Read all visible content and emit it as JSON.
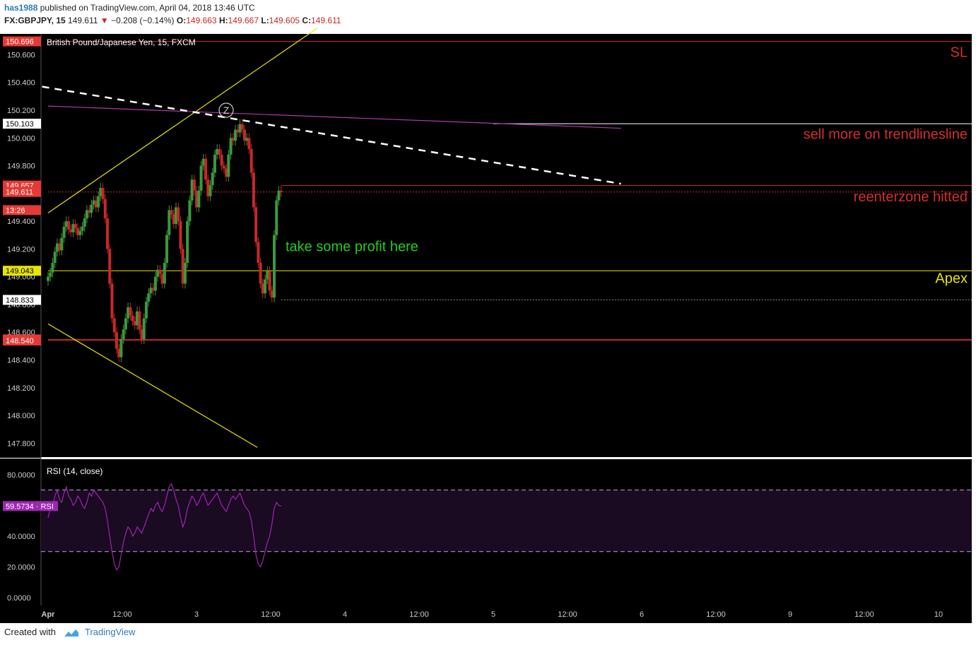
{
  "header": {
    "user": "has1988",
    "published": "published on TradingView.com, April 04, 2018 13:46 UTC",
    "symbol": "FX:GBPJPY, 15",
    "last": "149.611",
    "change_arrow": "▼",
    "change": "−0.208 (−0.14%)",
    "o_label": "O:",
    "o": "149.663",
    "h_label": "H:",
    "h": "149.667",
    "l_label": "L:",
    "l": "149.605",
    "c_label": "C:",
    "c": "149.611"
  },
  "footer": {
    "created_with": "Created with",
    "brand": "TradingView"
  },
  "colors": {
    "background": "#000000",
    "up_candle": "#3a9a3a",
    "down_candle": "#c62828",
    "red_line": "#d32f2f",
    "yellow_line": "#e6e600",
    "magenta_line": "#b03aa8",
    "rsi_line": "#9c27b0",
    "rsi_band": "#1a0a22",
    "green_text": "#22cc22"
  },
  "chart_data": [
    {
      "type": "candlestick",
      "title": "British Pound/Japanese Yen, 15, FXCM",
      "y_ticks": [
        "150.600",
        "150.400",
        "150.200",
        "150.000",
        "149.800",
        "149.400",
        "149.200",
        "149.000",
        "148.800",
        "148.600",
        "148.400",
        "148.200",
        "148.000",
        "147.800"
      ],
      "ylim": [
        147.7,
        150.75
      ],
      "x_ticks": [
        "Apr",
        "12:00",
        "3",
        "12:00",
        "4",
        "12:00",
        "5",
        "12:00",
        "6",
        "12:00",
        "9",
        "12:00",
        "10"
      ],
      "price_labels": [
        {
          "text": "150.696",
          "value": 150.696,
          "color": "#e53935",
          "text_color": "#ffffff"
        },
        {
          "text": "150.103",
          "value": 150.103,
          "color": "#ffffff",
          "text_color": "#000000"
        },
        {
          "text": "149.657",
          "value": 149.657,
          "color": "#e53935",
          "text_color": "#ffffff"
        },
        {
          "text": "149.611",
          "value": 149.611,
          "color": "#e53935",
          "text_color": "#ffffff"
        },
        {
          "text": "13:26",
          "value": 149.48,
          "color": "#e53935",
          "text_color": "#ffffff"
        },
        {
          "text": "149.043",
          "value": 149.043,
          "color": "#e6e600",
          "text_color": "#000000"
        },
        {
          "text": "148.833",
          "value": 148.833,
          "color": "#ffffff",
          "text_color": "#000000"
        },
        {
          "text": "148.548",
          "value": 148.548,
          "color": "#e53935",
          "text_color": "#ffffff"
        },
        {
          "text": "148.540",
          "value": 148.54,
          "color": "#e53935",
          "text_color": "#ffffff"
        }
      ],
      "horizontal_lines": [
        {
          "value": 150.696,
          "color": "#d32f2f",
          "from_x": 0.0
        },
        {
          "value": 150.103,
          "color": "#ffffff",
          "from_x": 3.0
        },
        {
          "value": 149.657,
          "color": "#d32f2f",
          "from_x": 1.57
        },
        {
          "value": 149.611,
          "color": "#d32f2f",
          "dotted": true,
          "from_x": 0.0
        },
        {
          "value": 149.043,
          "color": "#e6e600",
          "from_x": 0.0
        },
        {
          "value": 148.833,
          "color": "#888888",
          "dotted": true,
          "from_x": 1.57
        },
        {
          "value": 148.548,
          "color": "#d32f2f",
          "from_x": 0.0
        },
        {
          "value": 148.54,
          "color": "#d32f2f",
          "from_x": 0.0
        }
      ],
      "trend_lines": [
        {
          "points": [
            [
              0.0,
              149.46
            ],
            [
              2.18,
              151.06
            ]
          ],
          "color": "#e6e600"
        },
        {
          "points": [
            [
              0.0,
              148.66
            ],
            [
              1.41,
              147.77
            ]
          ],
          "color": "#e6e600"
        },
        {
          "points": [
            [
              0.0,
              150.23
            ],
            [
              3.86,
              150.07
            ]
          ],
          "color": "#b03aa8"
        },
        {
          "points": [
            [
              -0.04,
              150.37
            ],
            [
              3.86,
              149.67
            ]
          ],
          "color": "#ffffff",
          "dashed": true
        }
      ],
      "candles_close": [
        149.0,
        149.03,
        149.1,
        149.18,
        149.24,
        149.19,
        149.28,
        149.36,
        149.4,
        149.34,
        149.32,
        149.38,
        149.35,
        149.3,
        149.33,
        149.36,
        149.42,
        149.48,
        149.46,
        149.52,
        149.55,
        149.5,
        149.58,
        149.64,
        149.56,
        149.42,
        149.2,
        148.95,
        148.7,
        148.6,
        148.48,
        148.42,
        148.55,
        148.62,
        148.7,
        148.78,
        148.72,
        148.68,
        148.65,
        148.75,
        148.62,
        148.55,
        148.7,
        148.82,
        148.88,
        148.92,
        148.9,
        149.0,
        149.05,
        149.02,
        148.95,
        149.1,
        149.3,
        149.48,
        149.45,
        149.38,
        149.5,
        149.4,
        149.2,
        148.95,
        149.1,
        149.4,
        149.55,
        149.7,
        149.62,
        149.5,
        149.62,
        149.8,
        149.85,
        149.7,
        149.58,
        149.66,
        149.75,
        149.88,
        149.92,
        149.88,
        149.8,
        149.78,
        149.72,
        149.88,
        150.0,
        149.98,
        150.06,
        150.04,
        150.1,
        150.06,
        149.98,
        150.0,
        149.92,
        149.75,
        149.5,
        149.25,
        149.1,
        148.95,
        148.88,
        148.98,
        149.04,
        148.9,
        148.85,
        149.3,
        149.55,
        149.62,
        149.611
      ],
      "candles_x_range": [
        0.0,
        1.57
      ],
      "annotations": [
        {
          "text": "SL",
          "color": "#d32f2f",
          "value": 150.62
        },
        {
          "text": "sell more on trendlinesline",
          "color": "#d32f2f",
          "value": 150.03
        },
        {
          "text": "reenterzone hitted",
          "color": "#d32f2f",
          "value": 149.58
        },
        {
          "text": "take some profit here",
          "color": "#22cc22",
          "value": 149.22,
          "x": 1.6
        },
        {
          "text": "Apex",
          "color": "#e6e600",
          "value": 148.99
        }
      ],
      "marker": {
        "text": "Z",
        "x": 1.2,
        "value": 150.2
      }
    },
    {
      "type": "line",
      "title": "RSI (14, close)",
      "y_ticks": [
        "80.0000",
        "40.0000",
        "20.0000",
        "0.0000"
      ],
      "ylim": [
        -5,
        90
      ],
      "band": [
        30,
        70
      ],
      "current_label": "59.5734 · RSI",
      "current_value": 59.5734,
      "values": [
        52,
        58,
        60,
        66,
        70,
        64,
        62,
        68,
        72,
        66,
        64,
        60,
        62,
        66,
        64,
        60,
        58,
        62,
        68,
        66,
        70,
        68,
        66,
        64,
        62,
        58,
        50,
        40,
        30,
        22,
        18,
        20,
        28,
        36,
        42,
        46,
        44,
        40,
        42,
        46,
        44,
        42,
        46,
        50,
        54,
        58,
        56,
        60,
        62,
        58,
        56,
        60,
        66,
        72,
        74,
        70,
        64,
        60,
        52,
        46,
        50,
        58,
        62,
        66,
        64,
        60,
        62,
        66,
        68,
        64,
        60,
        62,
        64,
        66,
        68,
        64,
        60,
        58,
        56,
        60,
        64,
        66,
        64,
        66,
        68,
        64,
        60,
        58,
        56,
        50,
        40,
        28,
        22,
        20,
        24,
        30,
        36,
        40,
        48,
        58,
        62,
        60,
        59.57
      ]
    }
  ]
}
